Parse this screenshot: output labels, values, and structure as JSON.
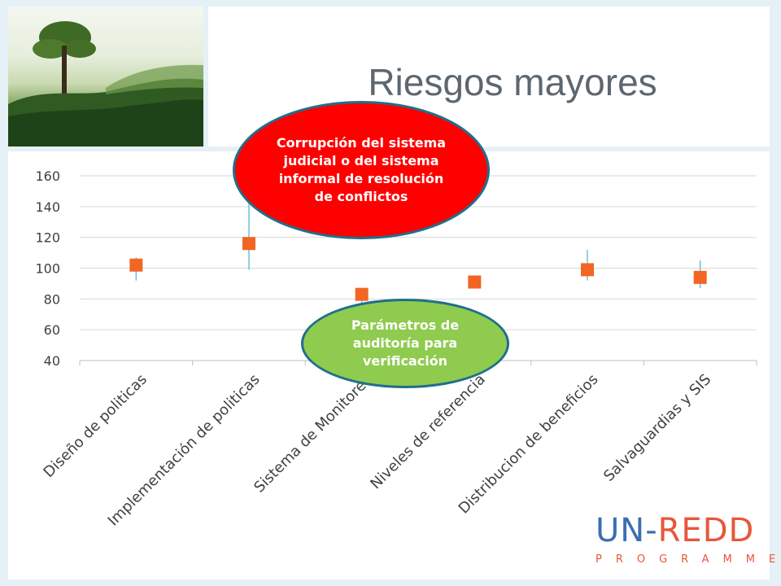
{
  "slide": {
    "title": "Riesgos mayores"
  },
  "callouts": {
    "red": "Corrupción del sistema judicial o del sistema informal de resolución de conflictos",
    "green": "Parámetros de auditoría para verificación"
  },
  "logo": {
    "part1": "UN-",
    "part2": "REDD",
    "sub": "PROGRAMME",
    "color_un": "#3a6fb0",
    "color_redd": "#e8563a"
  },
  "colors": {
    "marker": "#f26522",
    "whisker": "#6cc0d8",
    "grid": "#d9d9d9",
    "red_callout": "#fe0000",
    "green_callout": "#8fcb4f",
    "callout_border": "#1f6f8b"
  },
  "chart_data": {
    "type": "scatter",
    "categories": [
      "Diseño de politicas",
      "Implementación de politicas",
      "Sistema de Monitoreo",
      "Niveles de referencia",
      "Distribucion de beneficios",
      "Salvaguardias y SIS"
    ],
    "values": [
      102,
      116,
      83,
      91,
      99,
      94
    ],
    "error_high": [
      107,
      150,
      84,
      92,
      112,
      105
    ],
    "error_low": [
      92,
      99,
      74,
      90,
      92,
      87
    ],
    "ylim": [
      40,
      160
    ],
    "yticks": [
      40,
      60,
      80,
      100,
      120,
      140,
      160
    ],
    "title": "",
    "xlabel": "",
    "ylabel": "",
    "grid": true,
    "legend": "none"
  }
}
